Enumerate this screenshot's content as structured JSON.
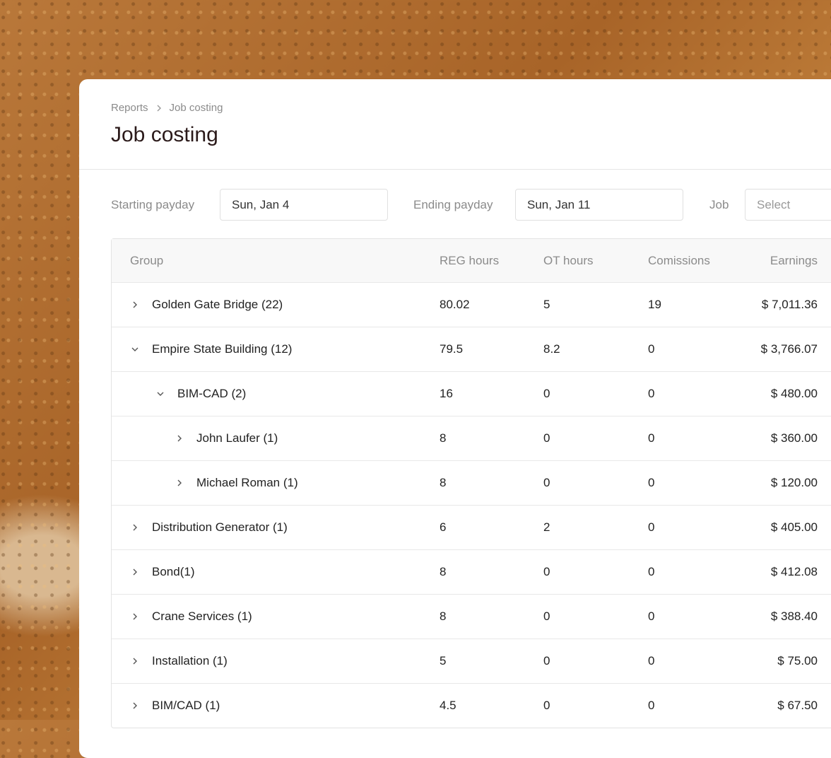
{
  "breadcrumb": [
    "Reports",
    "Job costing"
  ],
  "title": "Job costing",
  "filters": [
    {
      "label": "Starting payday",
      "value": "Sun, Jan 4"
    },
    {
      "label": "Ending payday",
      "value": "Sun, Jan 11"
    },
    {
      "label": "Job",
      "placeholder": "Select"
    }
  ],
  "table": {
    "columns": [
      "Group",
      "REG hours",
      "OT hours",
      "Comissions",
      "Earnings"
    ],
    "rows": [
      {
        "level": 0,
        "expanded": false,
        "cells": [
          "Golden Gate Bridge (22)",
          "80.02",
          "5",
          "19",
          "$ 7,011.36"
        ]
      },
      {
        "level": 0,
        "expanded": true,
        "cells": [
          "Empire State Building (12)",
          "79.5",
          "8.2",
          "0",
          "$ 3,766.07"
        ]
      },
      {
        "level": 1,
        "expanded": true,
        "cells": [
          "BIM-CAD (2)",
          "16",
          "0",
          "0",
          "$ 480.00"
        ]
      },
      {
        "level": 2,
        "expanded": false,
        "cells": [
          "John Laufer (1)",
          "8",
          "0",
          "0",
          "$ 360.00"
        ]
      },
      {
        "level": 2,
        "expanded": false,
        "cells": [
          "Michael Roman (1)",
          "8",
          "0",
          "0",
          "$ 120.00"
        ]
      },
      {
        "level": 0,
        "expanded": false,
        "cells": [
          "Distribution Generator (1)",
          "6",
          "2",
          "0",
          "$ 405.00"
        ]
      },
      {
        "level": 0,
        "expanded": false,
        "cells": [
          "Bond(1)",
          "8",
          "0",
          "0",
          "$ 412.08"
        ]
      },
      {
        "level": 0,
        "expanded": false,
        "cells": [
          "Crane Services (1)",
          "8",
          "0",
          "0",
          "$ 388.40"
        ]
      },
      {
        "level": 0,
        "expanded": false,
        "cells": [
          "Installation (1)",
          "5",
          "0",
          "0",
          "$ 75.00"
        ]
      },
      {
        "level": 0,
        "expanded": false,
        "cells": [
          "BIM/CAD (1)",
          "4.5",
          "0",
          "0",
          "$ 67.50"
        ]
      }
    ]
  }
}
